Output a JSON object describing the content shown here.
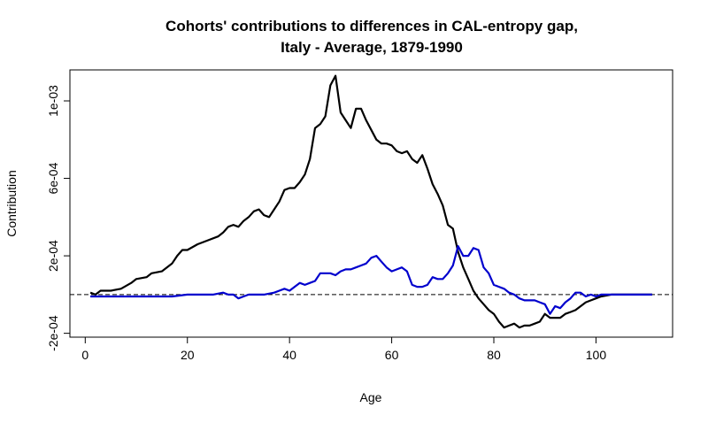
{
  "chart_data": {
    "type": "line",
    "title_line1": "Cohorts' contributions to differences in CAL-entropy gap,",
    "title_line2": "Italy - Average, 1879-1990",
    "xlabel": "Age",
    "ylabel": "Contribution",
    "xlim": [
      -3,
      115
    ],
    "ylim": [
      -0.00022,
      0.00116
    ],
    "x_ticks": [
      0,
      20,
      40,
      60,
      80,
      100
    ],
    "x_tick_labels": [
      "0",
      "20",
      "40",
      "60",
      "80",
      "100"
    ],
    "y_ticks": [
      -0.0002,
      0.0002,
      0.0006,
      0.001
    ],
    "y_tick_labels": [
      "-2e-04",
      "2e-04",
      "6e-04",
      "1e-03"
    ],
    "reference_line": 0,
    "series": [
      {
        "color": "#000000",
        "points": [
          [
            1,
            1e-05
          ],
          [
            2,
            0.0
          ],
          [
            3,
            2e-05
          ],
          [
            5,
            2e-05
          ],
          [
            7,
            3e-05
          ],
          [
            9,
            6e-05
          ],
          [
            10,
            8e-05
          ],
          [
            12,
            9e-05
          ],
          [
            13,
            0.00011
          ],
          [
            15,
            0.00012
          ],
          [
            17,
            0.00016
          ],
          [
            18,
            0.0002
          ],
          [
            19,
            0.00023
          ],
          [
            20,
            0.00023
          ],
          [
            22,
            0.00026
          ],
          [
            24,
            0.00028
          ],
          [
            26,
            0.0003
          ],
          [
            27,
            0.00032
          ],
          [
            28,
            0.00035
          ],
          [
            29,
            0.00036
          ],
          [
            30,
            0.00035
          ],
          [
            31,
            0.00038
          ],
          [
            32,
            0.0004
          ],
          [
            33,
            0.00043
          ],
          [
            34,
            0.00044
          ],
          [
            35,
            0.00041
          ],
          [
            36,
            0.0004
          ],
          [
            37,
            0.00044
          ],
          [
            38,
            0.00048
          ],
          [
            39,
            0.00054
          ],
          [
            40,
            0.00055
          ],
          [
            41,
            0.00055
          ],
          [
            42,
            0.00058
          ],
          [
            43,
            0.00062
          ],
          [
            44,
            0.0007
          ],
          [
            45,
            0.00086
          ],
          [
            46,
            0.00088
          ],
          [
            47,
            0.00092
          ],
          [
            48,
            0.00108
          ],
          [
            49,
            0.00113
          ],
          [
            50,
            0.00094
          ],
          [
            51,
            0.0009
          ],
          [
            52,
            0.00086
          ],
          [
            53,
            0.00096
          ],
          [
            54,
            0.00096
          ],
          [
            55,
            0.0009
          ],
          [
            56,
            0.00085
          ],
          [
            57,
            0.0008
          ],
          [
            58,
            0.00078
          ],
          [
            59,
            0.00078
          ],
          [
            60,
            0.00077
          ],
          [
            61,
            0.00074
          ],
          [
            62,
            0.00073
          ],
          [
            63,
            0.00074
          ],
          [
            64,
            0.0007
          ],
          [
            65,
            0.00068
          ],
          [
            66,
            0.00072
          ],
          [
            67,
            0.00065
          ],
          [
            68,
            0.00057
          ],
          [
            69,
            0.00052
          ],
          [
            70,
            0.00046
          ],
          [
            71,
            0.00036
          ],
          [
            72,
            0.00034
          ],
          [
            73,
            0.00022
          ],
          [
            74,
            0.00014
          ],
          [
            75,
            8e-05
          ],
          [
            76,
            2e-05
          ],
          [
            77,
            -2e-05
          ],
          [
            78,
            -5e-05
          ],
          [
            79,
            -8e-05
          ],
          [
            80,
            -0.0001
          ],
          [
            81,
            -0.00014
          ],
          [
            82,
            -0.00017
          ],
          [
            83,
            -0.00016
          ],
          [
            84,
            -0.00015
          ],
          [
            85,
            -0.00017
          ],
          [
            86,
            -0.00016
          ],
          [
            87,
            -0.00016
          ],
          [
            88,
            -0.00015
          ],
          [
            89,
            -0.00014
          ],
          [
            90,
            -0.0001
          ],
          [
            91,
            -0.00012
          ],
          [
            92,
            -0.00012
          ],
          [
            93,
            -0.00012
          ],
          [
            94,
            -0.0001
          ],
          [
            95,
            -9e-05
          ],
          [
            96,
            -8e-05
          ],
          [
            97,
            -6e-05
          ],
          [
            98,
            -4e-05
          ],
          [
            99,
            -3e-05
          ],
          [
            100,
            -2e-05
          ],
          [
            101,
            -1e-05
          ],
          [
            103,
            0.0
          ],
          [
            105,
            0.0
          ],
          [
            108,
            0.0
          ],
          [
            111,
            0.0
          ]
        ]
      },
      {
        "color": "#0000CD",
        "points": [
          [
            1,
            -1e-05
          ],
          [
            3,
            -1e-05
          ],
          [
            5,
            -1e-05
          ],
          [
            8,
            -1e-05
          ],
          [
            10,
            -1e-05
          ],
          [
            12,
            -1e-05
          ],
          [
            15,
            -1e-05
          ],
          [
            17,
            -1e-05
          ],
          [
            20,
            0.0
          ],
          [
            22,
            0.0
          ],
          [
            25,
            0.0
          ],
          [
            27,
            1e-05
          ],
          [
            28,
            0.0
          ],
          [
            29,
            0.0
          ],
          [
            30,
            -2e-05
          ],
          [
            31,
            -1e-05
          ],
          [
            32,
            0.0
          ],
          [
            33,
            0.0
          ],
          [
            35,
            0.0
          ],
          [
            37,
            1e-05
          ],
          [
            38,
            2e-05
          ],
          [
            39,
            3e-05
          ],
          [
            40,
            2e-05
          ],
          [
            41,
            4e-05
          ],
          [
            42,
            6e-05
          ],
          [
            43,
            5e-05
          ],
          [
            44,
            6e-05
          ],
          [
            45,
            7e-05
          ],
          [
            46,
            0.00011
          ],
          [
            47,
            0.00011
          ],
          [
            48,
            0.00011
          ],
          [
            49,
            0.0001
          ],
          [
            50,
            0.00012
          ],
          [
            51,
            0.00013
          ],
          [
            52,
            0.00013
          ],
          [
            53,
            0.00014
          ],
          [
            54,
            0.00015
          ],
          [
            55,
            0.00016
          ],
          [
            56,
            0.00019
          ],
          [
            57,
            0.0002
          ],
          [
            58,
            0.00017
          ],
          [
            59,
            0.00014
          ],
          [
            60,
            0.00012
          ],
          [
            61,
            0.00013
          ],
          [
            62,
            0.00014
          ],
          [
            63,
            0.00012
          ],
          [
            64,
            5e-05
          ],
          [
            65,
            4e-05
          ],
          [
            66,
            4e-05
          ],
          [
            67,
            5e-05
          ],
          [
            68,
            9e-05
          ],
          [
            69,
            8e-05
          ],
          [
            70,
            8e-05
          ],
          [
            71,
            0.00011
          ],
          [
            72,
            0.00015
          ],
          [
            73,
            0.00025
          ],
          [
            74,
            0.0002
          ],
          [
            75,
            0.0002
          ],
          [
            76,
            0.00024
          ],
          [
            77,
            0.00023
          ],
          [
            78,
            0.00014
          ],
          [
            79,
            0.00011
          ],
          [
            80,
            5e-05
          ],
          [
            81,
            4e-05
          ],
          [
            82,
            3e-05
          ],
          [
            83,
            1e-05
          ],
          [
            84,
            0.0
          ],
          [
            85,
            -2e-05
          ],
          [
            86,
            -3e-05
          ],
          [
            87,
            -3e-05
          ],
          [
            88,
            -3e-05
          ],
          [
            89,
            -4e-05
          ],
          [
            90,
            -5e-05
          ],
          [
            91,
            -0.0001
          ],
          [
            92,
            -6e-05
          ],
          [
            93,
            -7e-05
          ],
          [
            94,
            -4e-05
          ],
          [
            95,
            -2e-05
          ],
          [
            96,
            1e-05
          ],
          [
            97,
            1e-05
          ],
          [
            98,
            -1e-05
          ],
          [
            99,
            0.0
          ],
          [
            100,
            -1e-05
          ],
          [
            101,
            0.0
          ],
          [
            102,
            0.0
          ],
          [
            104,
            0.0
          ],
          [
            106,
            0.0
          ],
          [
            108,
            0.0
          ],
          [
            111,
            0.0
          ]
        ]
      }
    ],
    "grid": false,
    "legend": "none"
  }
}
